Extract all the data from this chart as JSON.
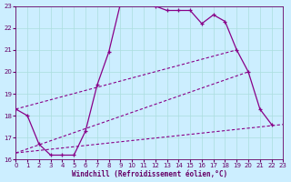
{
  "xlabel": "Windchill (Refroidissement éolien,°C)",
  "bg_color": "#cceeff",
  "line_color": "#880088",
  "grid_color": "#aadddd",
  "xlim": [
    0,
    23
  ],
  "ylim": [
    16,
    23
  ],
  "xticks": [
    0,
    1,
    2,
    3,
    4,
    5,
    6,
    7,
    8,
    9,
    10,
    11,
    12,
    13,
    14,
    15,
    16,
    17,
    18,
    19,
    20,
    21,
    22,
    23
  ],
  "yticks": [
    16,
    17,
    18,
    19,
    20,
    21,
    22,
    23
  ],
  "curve_x": [
    0,
    1,
    2,
    3,
    4,
    5,
    6,
    7,
    8,
    9,
    10,
    11,
    12,
    13,
    14,
    15,
    16,
    17,
    18,
    19,
    20,
    21,
    22
  ],
  "curve_y": [
    18.3,
    18.0,
    16.7,
    16.2,
    16.2,
    16.2,
    17.3,
    19.4,
    20.9,
    23.1,
    23.2,
    23.2,
    23.0,
    22.8,
    22.8,
    22.8,
    22.2,
    22.6,
    22.3,
    21.0,
    20.0,
    18.3,
    17.6
  ],
  "line1_x": [
    0,
    23
  ],
  "line1_y": [
    16.3,
    17.6
  ],
  "line2_x": [
    0,
    20
  ],
  "line2_y": [
    16.3,
    20.0
  ],
  "line3_x": [
    0,
    19
  ],
  "line3_y": [
    18.3,
    21.0
  ]
}
